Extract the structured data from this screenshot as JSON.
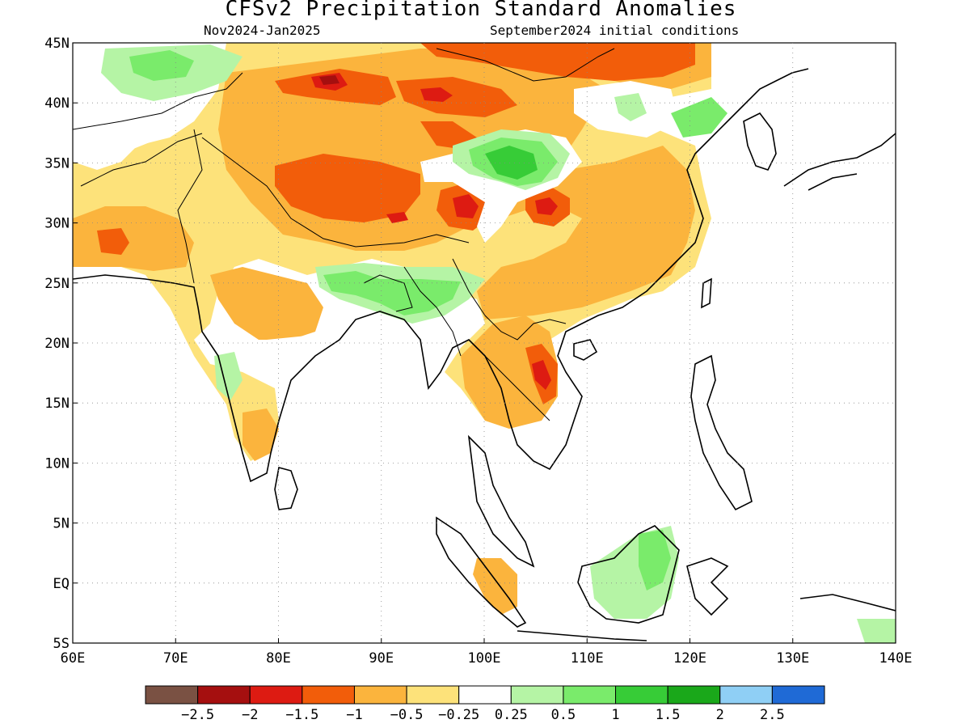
{
  "title": "CFSv2 Precipitation Standard Anomalies",
  "subtitle_period": "Nov2024-Jan2025",
  "subtitle_ic": "September2024 initial conditions",
  "map": {
    "lon_min": 60,
    "lon_max": 140,
    "lat_min": -5,
    "lat_max": 45,
    "x_ticks": [
      "60E",
      "70E",
      "80E",
      "90E",
      "100E",
      "110E",
      "120E",
      "130E",
      "140E"
    ],
    "y_ticks": [
      "45N",
      "40N",
      "35N",
      "30N",
      "25N",
      "20N",
      "15N",
      "10N",
      "5N",
      "EQ",
      "5S"
    ],
    "grid": "dotted"
  },
  "colorbar": {
    "colors": [
      "#7a5143",
      "#a50f0f",
      "#dd1b12",
      "#f25d0a",
      "#fbb43d",
      "#fde27a",
      "#ffffff",
      "#b5f4a5",
      "#7aeb6b",
      "#37cc37",
      "#1aa81a",
      "#8fcff5",
      "#1f6ad6"
    ],
    "labels": [
      "-2.5",
      "-2",
      "-1.5",
      "-1",
      "-0.5",
      "-0.25",
      "0.25",
      "0.5",
      "1",
      "1.5",
      "2",
      "2.5"
    ],
    "scale_values": [
      -2.5,
      -2,
      -1.5,
      -1,
      -0.5,
      -0.25,
      0.25,
      0.5,
      1,
      1.5,
      2,
      2.5
    ]
  },
  "anomaly_regions": [
    {
      "name": "mongolia-north-dry",
      "level": -1,
      "color": "#f25d0a"
    },
    {
      "name": "tibet-dry",
      "level": -1,
      "color": "#f25d0a"
    },
    {
      "name": "xinjiang-dry-core",
      "level": -2,
      "color": "#a50f0f"
    },
    {
      "name": "central-china-dry",
      "level": -1.5,
      "color": "#dd1b12"
    },
    {
      "name": "laos-dry",
      "level": -1.5,
      "color": "#dd1b12"
    },
    {
      "name": "central-china-wet",
      "level": 1,
      "color": "#37cc37"
    },
    {
      "name": "northeast-india-wet",
      "level": 0.5,
      "color": "#7aeb6b"
    },
    {
      "name": "kazakhstan-wet",
      "level": 0.5,
      "color": "#7aeb6b"
    },
    {
      "name": "borneo-wet",
      "level": 0.5,
      "color": "#7aeb6b"
    },
    {
      "name": "east-china-dry",
      "level": -0.5,
      "color": "#fbb43d"
    },
    {
      "name": "india-dry",
      "level": -0.5,
      "color": "#fbb43d"
    },
    {
      "name": "pakistan-dry",
      "level": -1,
      "color": "#f25d0a"
    }
  ]
}
